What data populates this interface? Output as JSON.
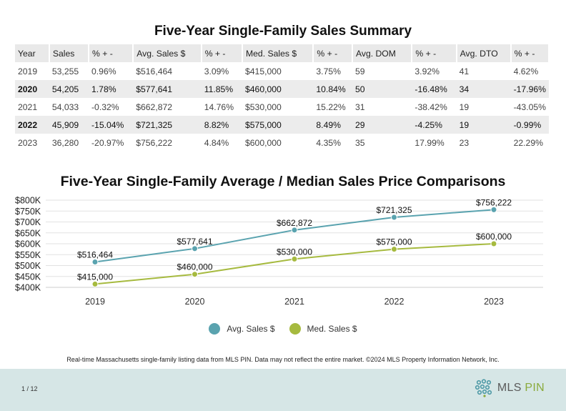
{
  "table": {
    "title": "Five-Year Single-Family Sales Summary",
    "headers": [
      "Year",
      "Sales",
      "% + -",
      "Avg. Sales $",
      "% + -",
      "Med. Sales $",
      "% + -",
      "Avg. DOM",
      "% + -",
      "Avg. DTO",
      "% + -"
    ],
    "rows": [
      [
        "2019",
        "53,255",
        "0.96%",
        "$516,464",
        "3.09%",
        "$415,000",
        "3.75%",
        "59",
        "3.92%",
        "41",
        "4.62%"
      ],
      [
        "2020",
        "54,205",
        "1.78%",
        "$577,641",
        "11.85%",
        "$460,000",
        "10.84%",
        "50",
        "-16.48%",
        "34",
        "-17.96%"
      ],
      [
        "2021",
        "54,033",
        "-0.32%",
        "$662,872",
        "14.76%",
        "$530,000",
        "15.22%",
        "31",
        "-38.42%",
        "19",
        "-43.05%"
      ],
      [
        "2022",
        "45,909",
        "-15.04%",
        "$721,325",
        "8.82%",
        "$575,000",
        "8.49%",
        "29",
        "-4.25%",
        "19",
        "-0.99%"
      ],
      [
        "2023",
        "36,280",
        "-20.97%",
        "$756,222",
        "4.84%",
        "$600,000",
        "4.35%",
        "35",
        "17.99%",
        "23",
        "22.29%"
      ]
    ]
  },
  "chart_data": {
    "type": "line",
    "title": "Five-Year Single-Family Average / Median Sales Price Comparisons",
    "x": [
      "2019",
      "2020",
      "2021",
      "2022",
      "2023"
    ],
    "yticks": [
      "$400K",
      "$450K",
      "$500K",
      "$550K",
      "$600K",
      "$650K",
      "$700K",
      "$750K",
      "$800K"
    ],
    "ylim": [
      400000,
      800000
    ],
    "grid": true,
    "legend": "bottom",
    "series": [
      {
        "name": "Avg. Sales $",
        "values": [
          516464,
          577641,
          662872,
          721325,
          756222
        ],
        "labels": [
          "$516,464",
          "$577,641",
          "$662,872",
          "$721,325",
          "$756,222"
        ],
        "color": "#5aa3af"
      },
      {
        "name": "Med. Sales $",
        "values": [
          415000,
          460000,
          530000,
          575000,
          600000
        ],
        "labels": [
          "$415,000",
          "$460,000",
          "$530,000",
          "$575,000",
          "$600,000"
        ],
        "color": "#a6ba3f"
      }
    ]
  },
  "footnote": "Real-time Massachusetts single-family listing data from MLS PIN. Data may not reflect the entire market. ©2024 MLS Property Information Network, Inc.",
  "footer": {
    "page": "1 / 12",
    "logo_part1": "MLS ",
    "logo_part2": "PIN",
    "logo_color1": "#5b5b5b",
    "logo_color2": "#8aaa3b"
  }
}
